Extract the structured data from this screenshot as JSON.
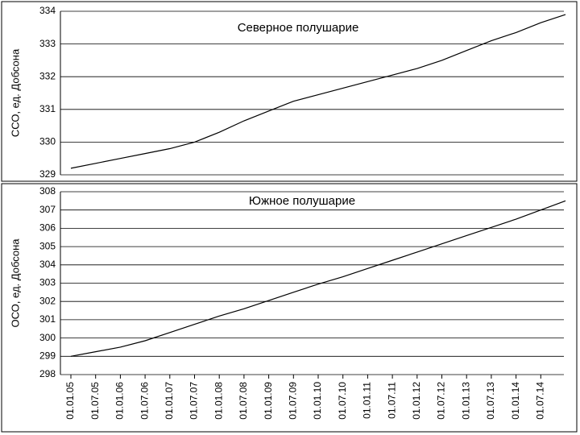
{
  "chart_data": [
    {
      "type": "line",
      "title": "Северное полушарие",
      "y_label": "ССО, ед. Добсона",
      "values": [
        329.2,
        329.35,
        329.5,
        329.65,
        329.8,
        330.0,
        330.3,
        330.65,
        330.95,
        331.25,
        331.45,
        331.65,
        331.85,
        332.05,
        332.25,
        332.5,
        332.8,
        333.1,
        333.35,
        333.65,
        333.9
      ],
      "color": "#000000",
      "ylim": [
        329,
        334
      ],
      "yticks": [
        329,
        330,
        331,
        332,
        333,
        334
      ],
      "grid": true
    },
    {
      "type": "line",
      "title": "Южное полушарие",
      "y_label": "ОСО, ед. Добсона",
      "categories": [
        "01.01.05",
        "01.07.05",
        "01.01.06",
        "01.07.06",
        "01.01.07",
        "01.07.07",
        "01.01.08",
        "01.07.08",
        "01.01.09",
        "01.07.09",
        "01.01.10",
        "01.07.10",
        "01.01.11",
        "01.07.11",
        "01.01.12",
        "01.07.12",
        "01.01.13",
        "01.07.13",
        "01.01.14",
        "01.07.14",
        null
      ],
      "values": [
        299.0,
        299.25,
        299.5,
        299.85,
        300.3,
        300.75,
        301.2,
        301.6,
        302.05,
        302.5,
        302.95,
        303.35,
        303.8,
        304.25,
        304.7,
        305.15,
        305.6,
        306.05,
        306.5,
        307.0,
        307.5
      ],
      "color": "#000000",
      "ylim": [
        298,
        308
      ],
      "yticks": [
        298,
        299,
        300,
        301,
        302,
        303,
        304,
        305,
        306,
        307,
        308
      ],
      "grid": true
    }
  ]
}
